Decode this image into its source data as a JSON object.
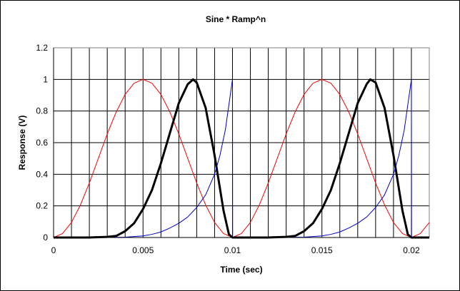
{
  "chart_data": {
    "type": "line",
    "title": "Sine * Ramp^n",
    "xlabel": "Time (sec)",
    "ylabel": "Response (V)",
    "xlim": [
      0,
      0.021
    ],
    "ylim": [
      0,
      1.2
    ],
    "x_major_ticks": [
      "0",
      "0.005",
      "0.01",
      "0.015",
      "0.02"
    ],
    "y_ticks": [
      "0",
      "0.2",
      "0.4",
      "0.6",
      "0.8",
      "1",
      "1.2"
    ],
    "x_minor_grid_step": 0.001,
    "grid": true,
    "legend": "none",
    "series": [
      {
        "color": "#ff0000",
        "stroke_width": 1,
        "x": [
          0,
          0.0005,
          0.001,
          0.0015,
          0.002,
          0.0025,
          0.003,
          0.0035,
          0.004,
          0.0045,
          0.005,
          0.0055,
          0.006,
          0.0065,
          0.007,
          0.0075,
          0.008,
          0.0085,
          0.009,
          0.0095,
          0.01,
          0.0105,
          0.011,
          0.0115,
          0.012,
          0.0125,
          0.013,
          0.0135,
          0.014,
          0.0145,
          0.015,
          0.0155,
          0.016,
          0.0165,
          0.017,
          0.0175,
          0.018,
          0.0185,
          0.019,
          0.0195,
          0.02,
          0.0205,
          0.021
        ],
        "y": [
          0,
          0.025,
          0.095,
          0.206,
          0.345,
          0.5,
          0.655,
          0.794,
          0.905,
          0.976,
          1,
          0.976,
          0.905,
          0.794,
          0.655,
          0.5,
          0.345,
          0.206,
          0.095,
          0.025,
          0,
          0.025,
          0.095,
          0.206,
          0.345,
          0.5,
          0.655,
          0.794,
          0.905,
          0.976,
          1,
          0.976,
          0.905,
          0.794,
          0.655,
          0.5,
          0.345,
          0.206,
          0.095,
          0.025,
          0,
          0.025,
          0.095
        ]
      },
      {
        "color": "#000000",
        "stroke_width": 3,
        "x": [
          0,
          0.002,
          0.003,
          0.0035,
          0.004,
          0.0045,
          0.005,
          0.0055,
          0.006,
          0.0065,
          0.007,
          0.0075,
          0.0078,
          0.008,
          0.0085,
          0.009,
          0.0095,
          0.0098,
          0.01,
          0.012,
          0.013,
          0.0135,
          0.014,
          0.0145,
          0.015,
          0.0155,
          0.016,
          0.0165,
          0.017,
          0.0175,
          0.0177,
          0.018,
          0.0185,
          0.019,
          0.0195,
          0.0198,
          0.02,
          0.021
        ],
        "y": [
          0,
          0,
          0.004,
          0.01,
          0.04,
          0.09,
          0.18,
          0.3,
          0.47,
          0.66,
          0.85,
          0.97,
          1,
          0.98,
          0.82,
          0.52,
          0.17,
          0.02,
          0,
          0,
          0.004,
          0.01,
          0.04,
          0.09,
          0.18,
          0.3,
          0.47,
          0.66,
          0.85,
          0.97,
          1,
          0.98,
          0.82,
          0.52,
          0.17,
          0.02,
          0,
          0
        ]
      },
      {
        "color": "#0000cc",
        "stroke_width": 1,
        "x": [
          0,
          0.001,
          0.002,
          0.003,
          0.004,
          0.005,
          0.0055,
          0.006,
          0.0065,
          0.007,
          0.0075,
          0.008,
          0.0085,
          0.009,
          0.0093,
          0.0096,
          0.0099,
          0.01,
          0.01001,
          0.011,
          0.012,
          0.013,
          0.014,
          0.015,
          0.0155,
          0.016,
          0.0165,
          0.017,
          0.0175,
          0.018,
          0.0185,
          0.019,
          0.0193,
          0.0196,
          0.0199,
          0.02,
          0.02001,
          0.021
        ],
        "y": [
          0,
          0,
          0,
          0,
          0.002,
          0.01,
          0.02,
          0.035,
          0.06,
          0.09,
          0.13,
          0.19,
          0.27,
          0.4,
          0.52,
          0.68,
          0.92,
          1,
          0,
          0,
          0,
          0,
          0.002,
          0.01,
          0.02,
          0.035,
          0.06,
          0.09,
          0.13,
          0.19,
          0.27,
          0.4,
          0.52,
          0.68,
          0.92,
          1,
          0,
          0
        ]
      }
    ]
  }
}
